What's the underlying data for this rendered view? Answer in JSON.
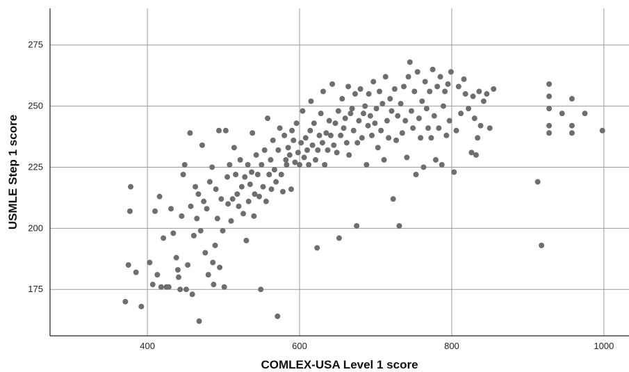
{
  "chart_data": {
    "type": "scatter",
    "xlabel": "COMLEX-USA Level 1 score",
    "ylabel": "USMLE Step 1 score",
    "xlim": [
      272,
      1033
    ],
    "ylim": [
      156,
      290
    ],
    "x_ticks": [
      400,
      600,
      800,
      1000
    ],
    "y_ticks": [
      175,
      200,
      225,
      250,
      275
    ],
    "grid": true,
    "legend": "none",
    "point_color": "#6e6e6e",
    "points": [
      [
        371,
        170
      ],
      [
        375,
        185
      ],
      [
        378,
        217
      ],
      [
        377,
        207
      ],
      [
        385,
        182
      ],
      [
        392,
        168
      ],
      [
        403,
        186
      ],
      [
        407,
        177
      ],
      [
        410,
        207
      ],
      [
        413,
        181
      ],
      [
        416,
        213
      ],
      [
        418,
        176
      ],
      [
        421,
        196
      ],
      [
        425,
        176
      ],
      [
        428,
        176
      ],
      [
        431,
        208
      ],
      [
        434,
        198
      ],
      [
        438,
        188
      ],
      [
        440,
        183
      ],
      [
        441,
        180
      ],
      [
        443,
        175
      ],
      [
        445,
        205
      ],
      [
        447,
        222
      ],
      [
        449,
        226
      ],
      [
        451,
        175
      ],
      [
        453,
        185
      ],
      [
        456,
        239
      ],
      [
        457,
        209
      ],
      [
        459,
        173
      ],
      [
        461,
        197
      ],
      [
        463,
        217
      ],
      [
        465,
        204
      ],
      [
        467,
        214
      ],
      [
        468,
        162
      ],
      [
        470,
        199
      ],
      [
        472,
        234
      ],
      [
        474,
        211
      ],
      [
        476,
        190
      ],
      [
        478,
        208
      ],
      [
        480,
        181
      ],
      [
        482,
        219
      ],
      [
        485,
        225
      ],
      [
        486,
        186
      ],
      [
        487,
        177
      ],
      [
        489,
        193
      ],
      [
        490,
        216
      ],
      [
        492,
        204
      ],
      [
        494,
        240
      ],
      [
        495,
        184
      ],
      [
        497,
        212
      ],
      [
        499,
        199
      ],
      [
        501,
        176
      ],
      [
        503,
        240
      ],
      [
        505,
        221
      ],
      [
        506,
        210
      ],
      [
        508,
        226
      ],
      [
        510,
        203
      ],
      [
        512,
        212
      ],
      [
        514,
        233
      ],
      [
        516,
        222
      ],
      [
        518,
        214
      ],
      [
        520,
        209
      ],
      [
        522,
        228
      ],
      [
        524,
        217
      ],
      [
        526,
        206
      ],
      [
        528,
        221
      ],
      [
        530,
        195
      ],
      [
        532,
        226
      ],
      [
        533,
        211
      ],
      [
        535,
        218
      ],
      [
        537,
        223
      ],
      [
        538,
        239
      ],
      [
        540,
        205
      ],
      [
        541,
        214
      ],
      [
        543,
        230
      ],
      [
        545,
        222
      ],
      [
        547,
        213
      ],
      [
        549,
        175
      ],
      [
        550,
        226
      ],
      [
        552,
        217
      ],
      [
        554,
        232
      ],
      [
        556,
        211
      ],
      [
        558,
        245
      ],
      [
        560,
        222
      ],
      [
        562,
        228
      ],
      [
        563,
        216
      ],
      [
        565,
        236
      ],
      [
        567,
        224
      ],
      [
        569,
        219
      ],
      [
        571,
        164
      ],
      [
        572,
        232
      ],
      [
        574,
        241
      ],
      [
        576,
        222
      ],
      [
        578,
        215
      ],
      [
        580,
        238
      ],
      [
        582,
        228
      ],
      [
        583,
        226
      ],
      [
        585,
        233
      ],
      [
        587,
        230
      ],
      [
        589,
        216
      ],
      [
        590,
        240
      ],
      [
        592,
        236
      ],
      [
        594,
        227
      ],
      [
        596,
        243
      ],
      [
        598,
        231
      ],
      [
        600,
        226
      ],
      [
        602,
        235
      ],
      [
        604,
        248
      ],
      [
        606,
        229
      ],
      [
        608,
        237
      ],
      [
        610,
        232
      ],
      [
        612,
        226
      ],
      [
        614,
        240
      ],
      [
        615,
        252
      ],
      [
        617,
        234
      ],
      [
        619,
        243
      ],
      [
        621,
        228
      ],
      [
        623,
        192
      ],
      [
        624,
        232
      ],
      [
        626,
        238
      ],
      [
        628,
        247
      ],
      [
        630,
        235
      ],
      [
        631,
        256
      ],
      [
        633,
        226
      ],
      [
        635,
        239
      ],
      [
        637,
        232
      ],
      [
        639,
        244
      ],
      [
        641,
        238
      ],
      [
        643,
        259
      ],
      [
        645,
        234
      ],
      [
        647,
        243
      ],
      [
        649,
        231
      ],
      [
        651,
        248
      ],
      [
        652,
        196
      ],
      [
        654,
        238
      ],
      [
        656,
        253
      ],
      [
        658,
        241
      ],
      [
        660,
        245
      ],
      [
        662,
        235
      ],
      [
        664,
        258
      ],
      [
        665,
        230
      ],
      [
        667,
        247
      ],
      [
        669,
        249
      ],
      [
        671,
        240
      ],
      [
        673,
        255
      ],
      [
        675,
        201
      ],
      [
        676,
        235
      ],
      [
        678,
        244
      ],
      [
        680,
        257
      ],
      [
        682,
        237
      ],
      [
        684,
        247
      ],
      [
        686,
        250
      ],
      [
        688,
        226
      ],
      [
        690,
        242
      ],
      [
        691,
        255
      ],
      [
        693,
        246
      ],
      [
        695,
        238
      ],
      [
        697,
        260
      ],
      [
        699,
        243
      ],
      [
        701,
        249
      ],
      [
        703,
        233
      ],
      [
        705,
        256
      ],
      [
        707,
        240
      ],
      [
        709,
        251
      ],
      [
        711,
        228
      ],
      [
        713,
        262
      ],
      [
        715,
        244
      ],
      [
        717,
        237
      ],
      [
        719,
        253
      ],
      [
        721,
        248
      ],
      [
        723,
        212
      ],
      [
        725,
        257
      ],
      [
        727,
        236
      ],
      [
        729,
        246
      ],
      [
        731,
        201
      ],
      [
        733,
        251
      ],
      [
        735,
        239
      ],
      [
        737,
        258
      ],
      [
        739,
        244
      ],
      [
        741,
        229
      ],
      [
        743,
        262
      ],
      [
        745,
        268
      ],
      [
        747,
        248
      ],
      [
        749,
        241
      ],
      [
        751,
        256
      ],
      [
        753,
        222
      ],
      [
        755,
        264
      ],
      [
        757,
        245
      ],
      [
        759,
        237
      ],
      [
        761,
        252
      ],
      [
        763,
        225
      ],
      [
        765,
        260
      ],
      [
        767,
        249
      ],
      [
        769,
        241
      ],
      [
        771,
        256
      ],
      [
        773,
        237
      ],
      [
        775,
        265
      ],
      [
        777,
        246
      ],
      [
        779,
        228
      ],
      [
        781,
        258
      ],
      [
        783,
        241
      ],
      [
        785,
        262
      ],
      [
        787,
        226
      ],
      [
        789,
        250
      ],
      [
        791,
        256
      ],
      [
        793,
        238
      ],
      [
        795,
        259
      ],
      [
        797,
        244
      ],
      [
        799,
        264
      ],
      [
        803,
        223
      ],
      [
        806,
        240
      ],
      [
        809,
        258
      ],
      [
        812,
        247
      ],
      [
        816,
        261
      ],
      [
        818,
        255
      ],
      [
        822,
        249
      ],
      [
        826,
        231
      ],
      [
        828,
        254
      ],
      [
        830,
        245
      ],
      [
        832,
        230
      ],
      [
        834,
        237
      ],
      [
        836,
        256
      ],
      [
        838,
        242
      ],
      [
        842,
        252
      ],
      [
        846,
        255
      ],
      [
        850,
        241
      ],
      [
        855,
        257
      ],
      [
        913,
        219
      ],
      [
        918,
        193
      ],
      [
        928,
        259
      ],
      [
        928,
        254
      ],
      [
        928,
        249
      ],
      [
        928,
        242
      ],
      [
        928,
        239
      ],
      [
        945,
        247
      ],
      [
        958,
        253
      ],
      [
        958,
        242
      ],
      [
        958,
        239
      ],
      [
        975,
        247
      ],
      [
        998,
        240
      ]
    ]
  }
}
